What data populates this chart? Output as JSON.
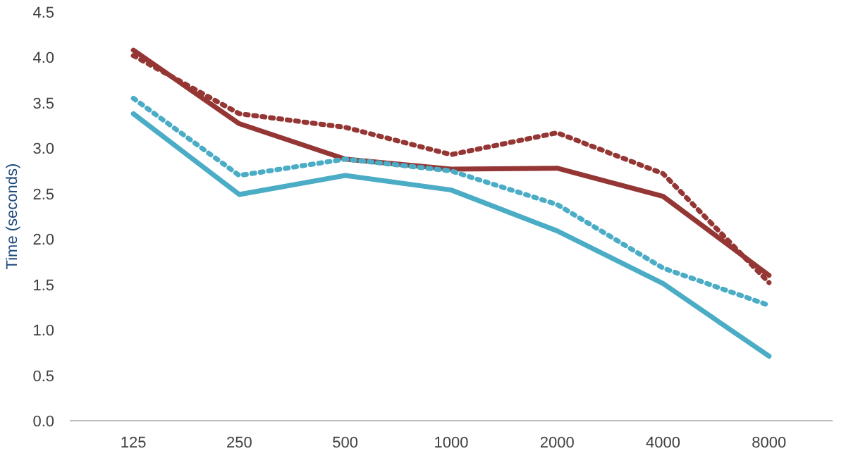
{
  "chart_data": {
    "type": "line",
    "ylabel": "Time (seconds)",
    "categories": [
      "125",
      "250",
      "500",
      "1000",
      "2000",
      "4000",
      "8000"
    ],
    "series": [
      {
        "color": "#943634",
        "line_style": "solid",
        "values": [
          4.08,
          3.27,
          2.88,
          2.77,
          2.78,
          2.47,
          1.6
        ]
      },
      {
        "color": "#943634",
        "line_style": "dotted",
        "values": [
          4.02,
          3.38,
          3.23,
          2.93,
          3.17,
          2.72,
          1.52
        ]
      },
      {
        "color": "#4bacc6",
        "line_style": "solid",
        "values": [
          3.38,
          2.49,
          2.7,
          2.54,
          2.09,
          1.51,
          0.71
        ]
      },
      {
        "color": "#4bacc6",
        "line_style": "dotted",
        "values": [
          3.55,
          2.7,
          2.88,
          2.75,
          2.38,
          1.68,
          1.27
        ]
      }
    ],
    "ylim": [
      0,
      4.5
    ],
    "yticks": [
      {
        "value": 0,
        "label": "0.0"
      },
      {
        "value": 0.5,
        "label": "0.5"
      },
      {
        "value": 1,
        "label": "1.0"
      },
      {
        "value": 1.5,
        "label": "1.5"
      },
      {
        "value": 2,
        "label": "2.0"
      },
      {
        "value": 2.5,
        "label": "2.5"
      },
      {
        "value": 3,
        "label": "3.0"
      },
      {
        "value": 3.5,
        "label": "3.5"
      },
      {
        "value": 4,
        "label": "4.0"
      },
      {
        "value": 4.5,
        "label": "4.5"
      }
    ],
    "grid": false,
    "marker": "none"
  }
}
